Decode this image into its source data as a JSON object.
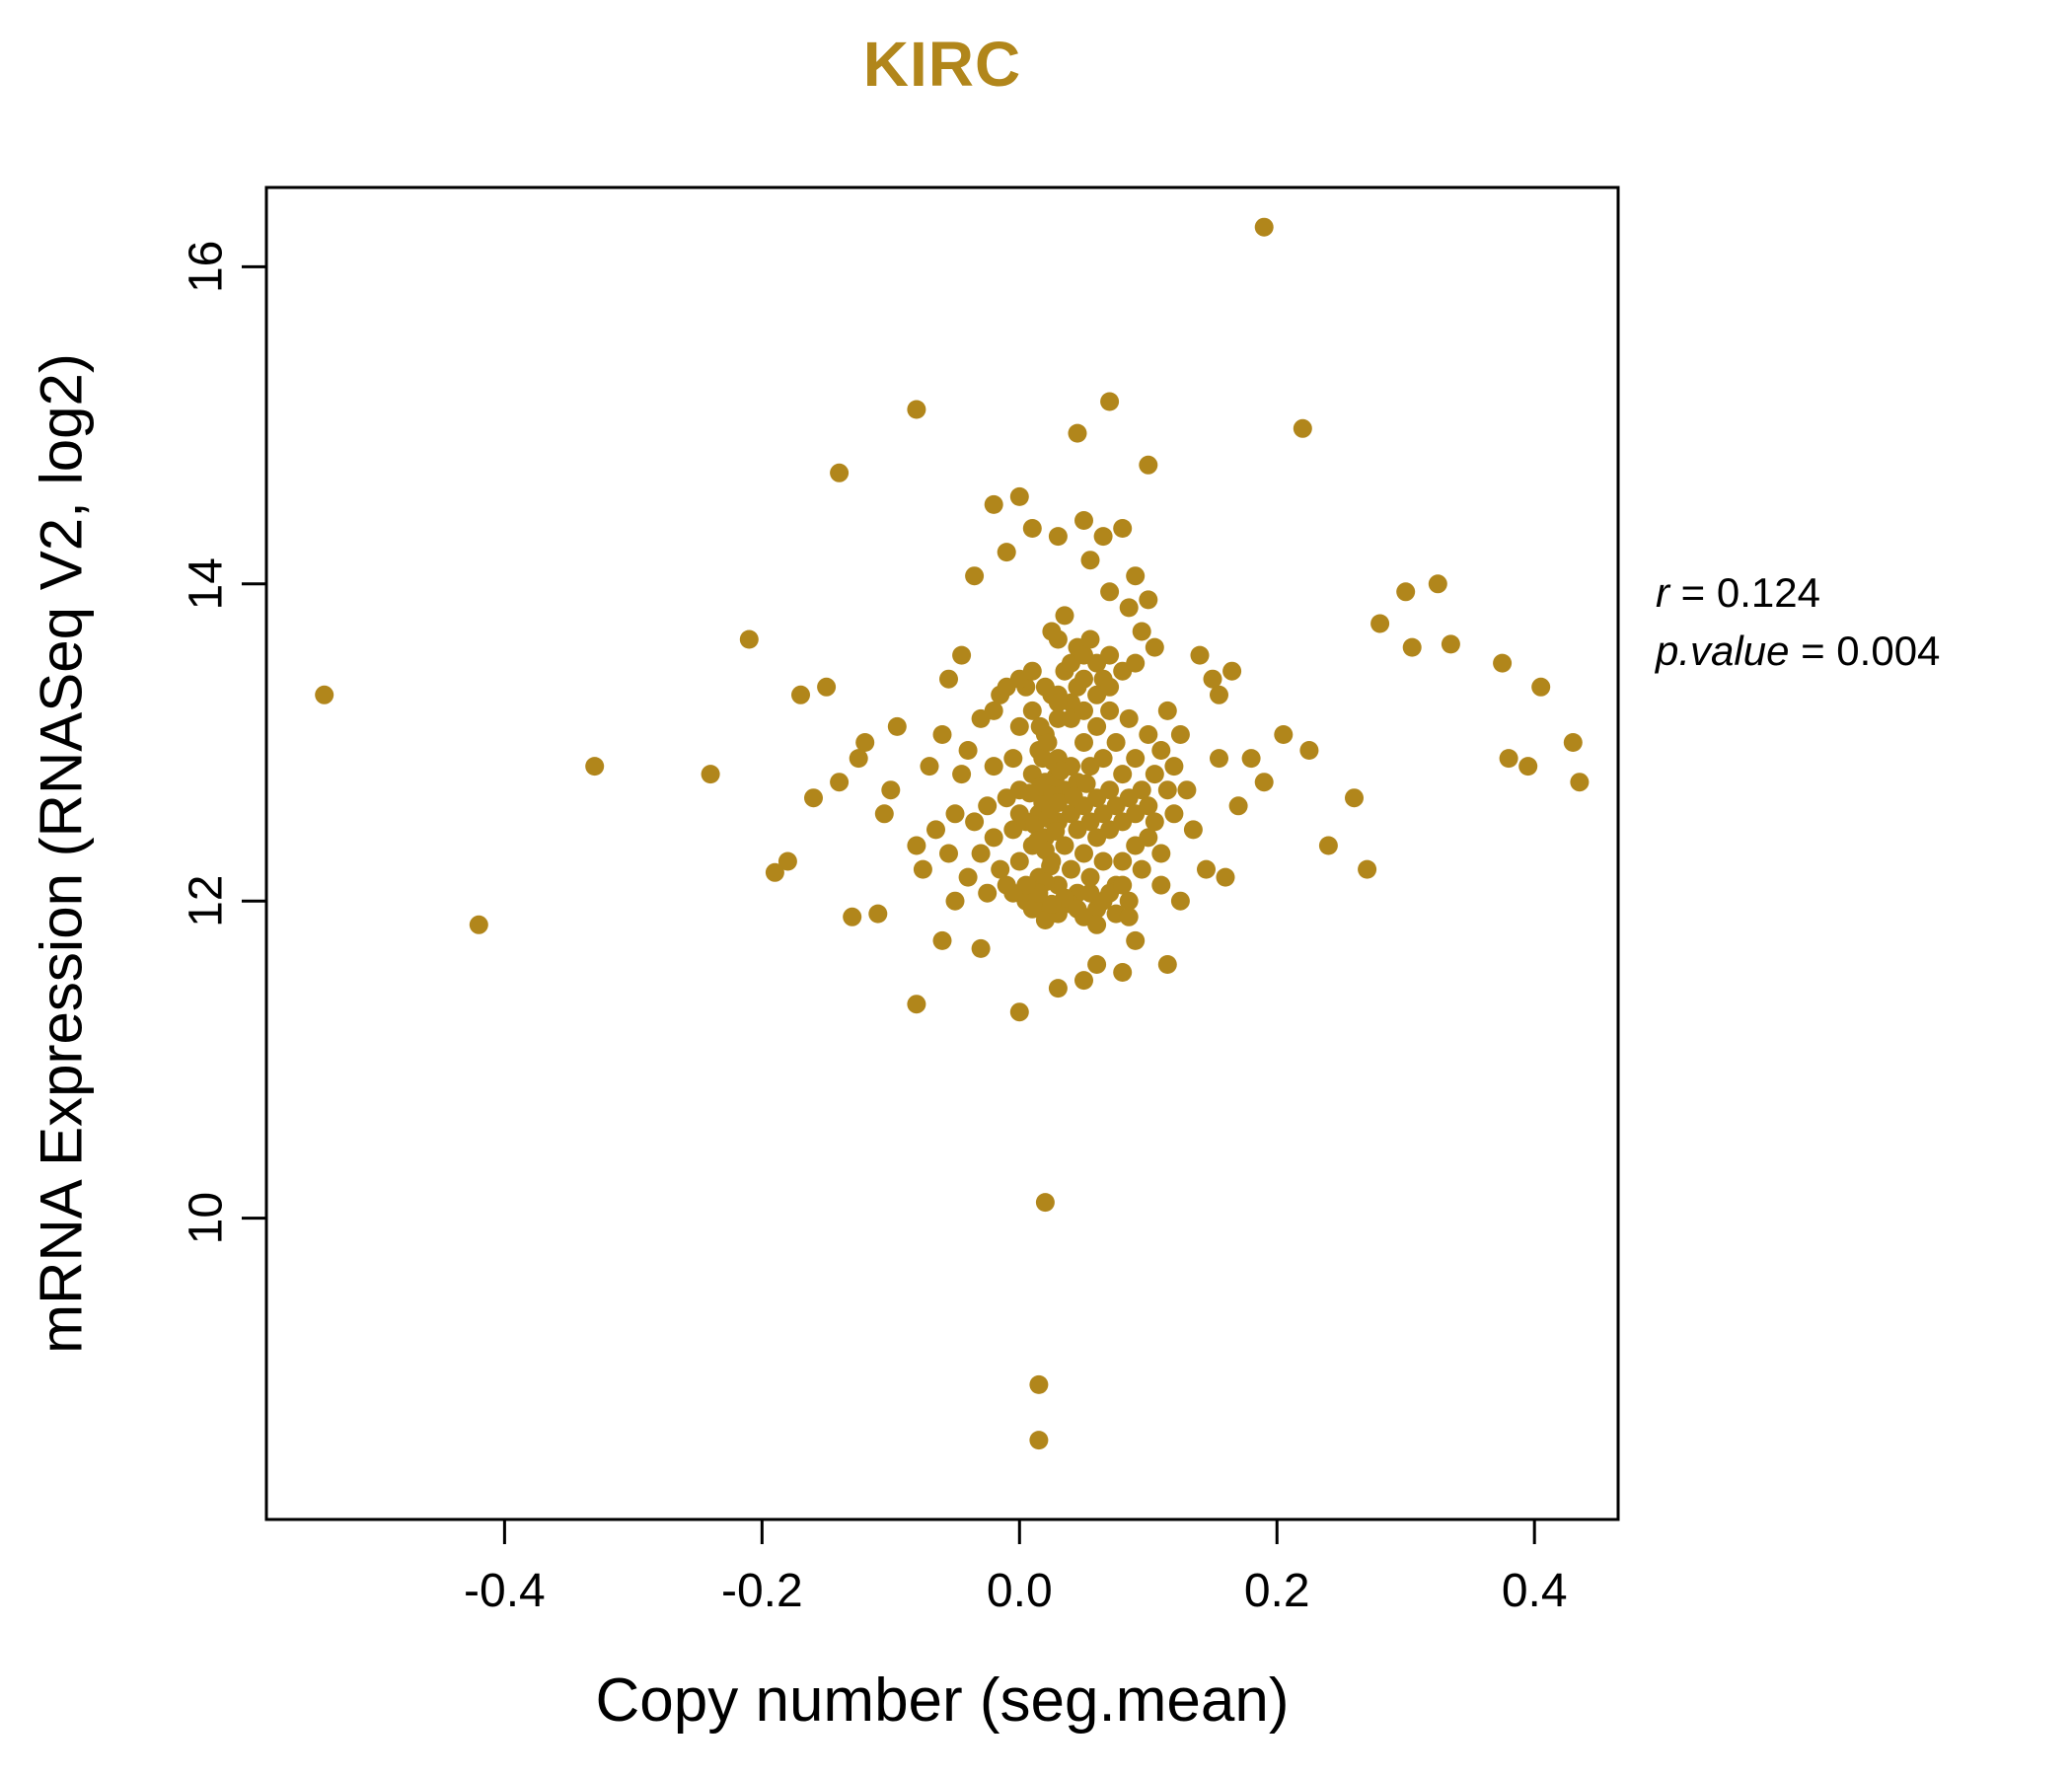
{
  "figure": {
    "title": "KIRC",
    "x_axis_label": "Copy number (seg.mean)",
    "y_axis_label": "mRNA Expression (RNASeq V2, log2)",
    "annotation": {
      "line1_name": "r",
      "line1_rest": " = 0.124",
      "line2_name": "p.value",
      "line2_rest": " = 0.004"
    }
  },
  "chart_data": {
    "type": "scatter",
    "title": "KIRC",
    "xlabel": "Copy number (seg.mean)",
    "ylabel": "mRNA Expression (RNASeq V2, log2)",
    "xlim": [
      -0.585,
      0.465
    ],
    "ylim": [
      8.1,
      16.5
    ],
    "xticks": [
      -0.4,
      -0.2,
      0.0,
      0.2,
      0.4
    ],
    "xtick_labels": [
      "-0.4",
      "-0.2",
      "0.0",
      "0.2",
      "0.4"
    ],
    "yticks": [
      10,
      12,
      14,
      16
    ],
    "ytick_labels": [
      "10",
      "12",
      "14",
      "16"
    ],
    "grid": false,
    "legend": null,
    "title_color": "#B1861B",
    "point_color": "#B1861B",
    "point_radius": 9.5,
    "stats": {
      "r": 0.124,
      "p_value": 0.004
    },
    "points": [
      [
        0.19,
        16.25
      ],
      [
        -0.54,
        13.3
      ],
      [
        -0.42,
        11.85
      ],
      [
        -0.33,
        12.85
      ],
      [
        -0.24,
        12.8
      ],
      [
        0.02,
        10.1
      ],
      [
        0.015,
        8.95
      ],
      [
        0.015,
        8.6
      ],
      [
        -0.08,
        15.1
      ],
      [
        0.07,
        15.15
      ],
      [
        0.045,
        14.95
      ],
      [
        0.22,
        14.98
      ],
      [
        -0.14,
        14.7
      ],
      [
        0.1,
        14.75
      ],
      [
        -0.21,
        13.65
      ],
      [
        0.3,
        13.95
      ],
      [
        0.325,
        14.0
      ],
      [
        0.28,
        13.75
      ],
      [
        0.305,
        13.6
      ],
      [
        0.335,
        13.62
      ],
      [
        0.375,
        13.5
      ],
      [
        0.405,
        13.35
      ],
      [
        0.38,
        12.9
      ],
      [
        0.395,
        12.85
      ],
      [
        0.43,
        13.0
      ],
      [
        0.435,
        12.75
      ],
      [
        0.26,
        12.65
      ],
      [
        0.27,
        12.2
      ],
      [
        0.24,
        12.35
      ],
      [
        0.205,
        13.05
      ],
      [
        0.225,
        12.95
      ],
      [
        0.19,
        12.75
      ],
      [
        0.165,
        13.45
      ],
      [
        0.15,
        13.4
      ],
      [
        0.155,
        12.9
      ],
      [
        0.17,
        12.6
      ],
      [
        0.145,
        12.2
      ],
      [
        0.16,
        12.15
      ],
      [
        0.18,
        12.9
      ],
      [
        0.155,
        13.3
      ],
      [
        0.14,
        13.55
      ],
      [
        0.135,
        12.45
      ],
      [
        0.125,
        12.0
      ],
      [
        -0.18,
        12.25
      ],
      [
        -0.19,
        12.18
      ],
      [
        -0.13,
        11.9
      ],
      [
        -0.11,
        11.92
      ],
      [
        -0.16,
        12.65
      ],
      [
        -0.17,
        13.3
      ],
      [
        -0.15,
        13.35
      ],
      [
        -0.12,
        13.0
      ],
      [
        -0.125,
        12.9
      ],
      [
        -0.1,
        12.7
      ],
      [
        -0.095,
        13.1
      ],
      [
        -0.105,
        12.55
      ],
      [
        -0.14,
        12.75
      ],
      [
        -0.08,
        12.35
      ],
      [
        -0.08,
        11.35
      ],
      [
        0.0,
        11.3
      ],
      [
        0.05,
        11.5
      ],
      [
        0.08,
        11.55
      ],
      [
        0.115,
        11.6
      ],
      [
        -0.06,
        11.75
      ],
      [
        0.03,
        11.45
      ],
      [
        0.06,
        11.6
      ],
      [
        0.09,
        11.75
      ],
      [
        -0.03,
        11.7
      ],
      [
        -0.02,
        14.5
      ],
      [
        0.0,
        14.55
      ],
      [
        0.01,
        14.35
      ],
      [
        -0.01,
        14.2
      ],
      [
        0.03,
        14.3
      ],
      [
        0.05,
        14.4
      ],
      [
        0.065,
        14.3
      ],
      [
        0.08,
        14.35
      ],
      [
        0.055,
        14.15
      ],
      [
        0.07,
        13.95
      ],
      [
        0.09,
        14.05
      ],
      [
        0.1,
        13.9
      ],
      [
        0.085,
        13.85
      ],
      [
        -0.035,
        14.05
      ],
      [
        -0.055,
        12.3
      ],
      [
        -0.05,
        12.55
      ],
      [
        -0.045,
        12.8
      ],
      [
        -0.04,
        12.15
      ],
      [
        -0.04,
        12.95
      ],
      [
        -0.035,
        12.5
      ],
      [
        -0.03,
        12.3
      ],
      [
        -0.03,
        13.15
      ],
      [
        -0.025,
        12.6
      ],
      [
        -0.025,
        12.05
      ],
      [
        -0.02,
        12.85
      ],
      [
        -0.02,
        12.4
      ],
      [
        -0.015,
        13.3
      ],
      [
        -0.015,
        12.2
      ],
      [
        -0.01,
        12.65
      ],
      [
        -0.01,
        12.1
      ],
      [
        -0.005,
        12.9
      ],
      [
        -0.005,
        12.45
      ],
      [
        0.0,
        12.25
      ],
      [
        0.0,
        12.7
      ],
      [
        0.0,
        13.1
      ],
      [
        0.005,
        12.5
      ],
      [
        0.005,
        12.0
      ],
      [
        0.005,
        13.35
      ],
      [
        0.01,
        12.35
      ],
      [
        0.01,
        12.8
      ],
      [
        0.01,
        13.2
      ],
      [
        0.015,
        12.55
      ],
      [
        0.015,
        12.15
      ],
      [
        0.015,
        12.95
      ],
      [
        0.02,
        12.4
      ],
      [
        0.02,
        12.75
      ],
      [
        0.02,
        13.05
      ],
      [
        0.02,
        11.95
      ],
      [
        0.025,
        12.6
      ],
      [
        0.025,
        12.25
      ],
      [
        0.025,
        13.3
      ],
      [
        0.03,
        12.5
      ],
      [
        0.03,
        12.9
      ],
      [
        0.03,
        12.1
      ],
      [
        0.03,
        13.15
      ],
      [
        0.035,
        12.7
      ],
      [
        0.035,
        12.35
      ],
      [
        0.035,
        12.0
      ],
      [
        0.04,
        12.55
      ],
      [
        0.04,
        12.85
      ],
      [
        0.04,
        13.25
      ],
      [
        0.04,
        12.2
      ],
      [
        0.045,
        12.45
      ],
      [
        0.045,
        12.75
      ],
      [
        0.045,
        12.05
      ],
      [
        0.05,
        12.6
      ],
      [
        0.05,
        12.3
      ],
      [
        0.05,
        13.0
      ],
      [
        0.05,
        13.4
      ],
      [
        0.055,
        12.5
      ],
      [
        0.055,
        12.85
      ],
      [
        0.055,
        12.15
      ],
      [
        0.06,
        12.65
      ],
      [
        0.06,
        12.4
      ],
      [
        0.06,
        13.1
      ],
      [
        0.06,
        11.95
      ],
      [
        0.065,
        12.55
      ],
      [
        0.065,
        12.9
      ],
      [
        0.065,
        12.25
      ],
      [
        0.07,
        12.7
      ],
      [
        0.07,
        12.45
      ],
      [
        0.07,
        13.2
      ],
      [
        0.075,
        12.6
      ],
      [
        0.075,
        12.1
      ],
      [
        0.075,
        13.0
      ],
      [
        0.08,
        12.5
      ],
      [
        0.08,
        12.8
      ],
      [
        0.08,
        12.25
      ],
      [
        0.085,
        12.65
      ],
      [
        0.085,
        13.15
      ],
      [
        0.085,
        12.0
      ],
      [
        0.09,
        12.55
      ],
      [
        0.09,
        12.9
      ],
      [
        0.09,
        12.35
      ],
      [
        0.095,
        12.7
      ],
      [
        0.095,
        12.2
      ],
      [
        0.1,
        12.6
      ],
      [
        0.1,
        13.05
      ],
      [
        0.1,
        12.4
      ],
      [
        0.105,
        12.8
      ],
      [
        0.105,
        12.5
      ],
      [
        0.11,
        12.95
      ],
      [
        0.11,
        12.3
      ],
      [
        0.115,
        12.7
      ],
      [
        0.012,
        12.48
      ],
      [
        0.018,
        12.62
      ],
      [
        0.022,
        12.52
      ],
      [
        0.028,
        12.44
      ],
      [
        0.016,
        12.72
      ],
      [
        0.024,
        12.58
      ],
      [
        0.02,
        12.32
      ],
      [
        0.026,
        12.68
      ],
      [
        0.014,
        12.38
      ],
      [
        0.03,
        12.62
      ],
      [
        0.018,
        12.9
      ],
      [
        0.022,
        13.0
      ],
      [
        0.028,
        12.78
      ],
      [
        0.016,
        13.1
      ],
      [
        0.024,
        12.22
      ],
      [
        0.02,
        12.12
      ],
      [
        0.026,
        12.88
      ],
      [
        0.03,
        13.3
      ],
      [
        0.035,
        13.45
      ],
      [
        0.04,
        13.5
      ],
      [
        0.045,
        13.6
      ],
      [
        0.05,
        13.55
      ],
      [
        0.03,
        13.65
      ],
      [
        0.025,
        13.7
      ],
      [
        0.035,
        13.8
      ],
      [
        0.055,
        13.65
      ],
      [
        0.06,
        13.5
      ],
      [
        0.045,
        13.35
      ],
      [
        0.065,
        13.4
      ],
      [
        0.07,
        13.55
      ],
      [
        0.01,
        11.95
      ],
      [
        0.02,
        11.88
      ],
      [
        0.03,
        11.92
      ],
      [
        0.04,
        11.98
      ],
      [
        0.05,
        11.9
      ],
      [
        0.06,
        11.85
      ],
      [
        0.035,
        12.02
      ],
      [
        0.045,
        11.95
      ],
      [
        0.055,
        12.05
      ],
      [
        0.025,
        11.98
      ],
      [
        0.015,
        12.05
      ],
      [
        0.005,
        12.1
      ],
      [
        -0.005,
        12.05
      ],
      [
        0.065,
        12.0
      ],
      [
        0.075,
        11.92
      ],
      [
        0.085,
        11.9
      ],
      [
        0.07,
        12.05
      ],
      [
        0.08,
        12.1
      ],
      [
        -0.01,
        13.35
      ],
      [
        -0.02,
        13.2
      ],
      [
        0.0,
        13.4
      ],
      [
        0.01,
        13.45
      ],
      [
        0.02,
        13.35
      ],
      [
        0.03,
        13.25
      ],
      [
        0.04,
        13.15
      ],
      [
        0.05,
        13.2
      ],
      [
        0.06,
        13.3
      ],
      [
        0.07,
        13.35
      ],
      [
        0.08,
        13.45
      ],
      [
        0.09,
        13.5
      ],
      [
        -0.065,
        12.45
      ],
      [
        -0.07,
        12.85
      ],
      [
        -0.075,
        12.2
      ],
      [
        -0.06,
        13.05
      ],
      [
        -0.055,
        13.4
      ],
      [
        -0.045,
        13.55
      ],
      [
        -0.05,
        12.0
      ],
      [
        0.095,
        13.7
      ],
      [
        0.105,
        13.6
      ],
      [
        0.115,
        13.2
      ],
      [
        0.12,
        12.85
      ],
      [
        0.125,
        13.05
      ],
      [
        0.11,
        12.1
      ],
      [
        0.12,
        12.55
      ],
      [
        0.13,
        12.7
      ],
      [
        0.0,
        12.55
      ],
      [
        0.008,
        12.68
      ],
      [
        0.032,
        12.82
      ],
      [
        0.042,
        12.66
      ],
      [
        0.052,
        12.74
      ]
    ]
  }
}
